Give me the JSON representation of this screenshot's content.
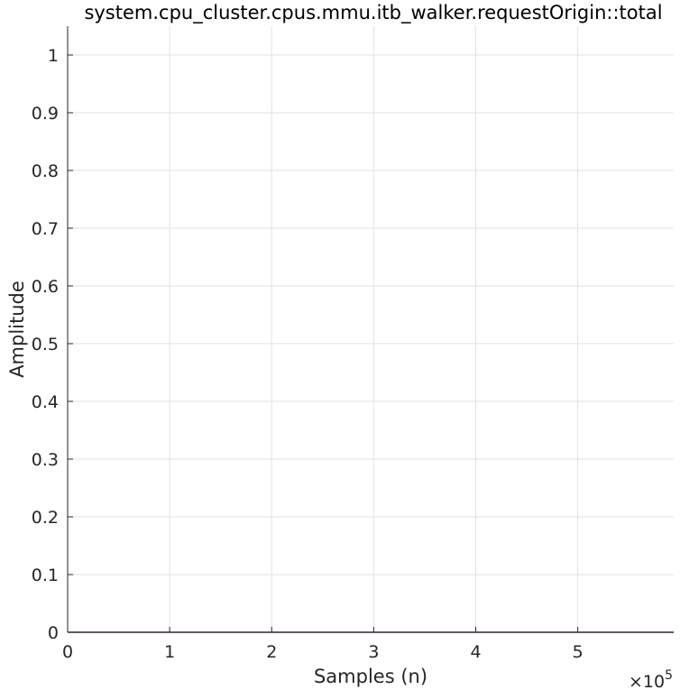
{
  "chart_data": {
    "type": "line",
    "title": "system.cpu_cluster.cpus.mmu.itb_walker.requestOrigin::total",
    "xlabel": "Samples (n)",
    "ylabel": "Amplitude",
    "x_exponent_label": "×10",
    "x_exponent_power": "5",
    "xlim": [
      0,
      5.94
    ],
    "ylim": [
      0,
      1.05
    ],
    "x_ticks": [
      0,
      1,
      2,
      3,
      4,
      5
    ],
    "x_tick_labels": [
      "0",
      "1",
      "2",
      "3",
      "4",
      "5"
    ],
    "y_ticks": [
      0,
      0.1,
      0.2,
      0.3,
      0.4,
      0.5,
      0.6,
      0.7,
      0.8,
      0.9,
      1
    ],
    "y_tick_labels": [
      "0",
      "0.1",
      "0.2",
      "0.3",
      "0.4",
      "0.5",
      "0.6",
      "0.7",
      "0.8",
      "0.9",
      "1"
    ],
    "grid": true,
    "series": [
      {
        "color": "#4b1a4f",
        "x": [
          0,
          5.94
        ],
        "y": [
          0,
          0
        ]
      }
    ]
  }
}
